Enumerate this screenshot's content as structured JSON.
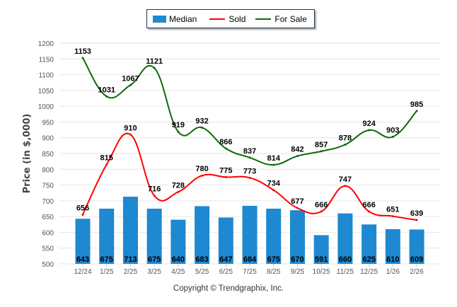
{
  "legend": {
    "items": [
      {
        "label": "Median",
        "kind": "bar",
        "color": "#1e88d0"
      },
      {
        "label": "Sold",
        "kind": "line",
        "color": "#ff0000"
      },
      {
        "label": "For Sale",
        "kind": "line",
        "color": "#0a6b0a"
      }
    ]
  },
  "copyright": "Copyright © Trendgraphix, Inc.",
  "chart_data": {
    "type": "bar",
    "title": "",
    "xlabel": "",
    "ylabel": "Price (in $,000)",
    "ylim": [
      500,
      1200
    ],
    "yticks": [
      500,
      550,
      600,
      650,
      700,
      750,
      800,
      850,
      900,
      950,
      1000,
      1050,
      1100,
      1150,
      1200
    ],
    "grid": true,
    "legend_position": "top-center",
    "categories": [
      "12/24",
      "1/25",
      "2/25",
      "3/25",
      "4/25",
      "5/25",
      "6/25",
      "7/25",
      "8/25",
      "9/25",
      "10/25",
      "11/25",
      "12/25",
      "1/26",
      "2/26"
    ],
    "series": [
      {
        "name": "Median",
        "type": "bar",
        "color": "#1e88d0",
        "values": [
          643,
          675,
          713,
          675,
          640,
          683,
          647,
          684,
          675,
          670,
          591,
          660,
          625,
          610,
          609
        ]
      },
      {
        "name": "Sold",
        "type": "line",
        "color": "#ff0000",
        "values": [
          656,
          815,
          910,
          716,
          728,
          780,
          775,
          773,
          734,
          677,
          666,
          747,
          666,
          651,
          639
        ]
      },
      {
        "name": "For Sale",
        "type": "line",
        "color": "#0a6b0a",
        "values": [
          1153,
          1031,
          1067,
          1121,
          919,
          932,
          866,
          837,
          814,
          842,
          857,
          878,
          924,
          903,
          985
        ]
      }
    ]
  }
}
